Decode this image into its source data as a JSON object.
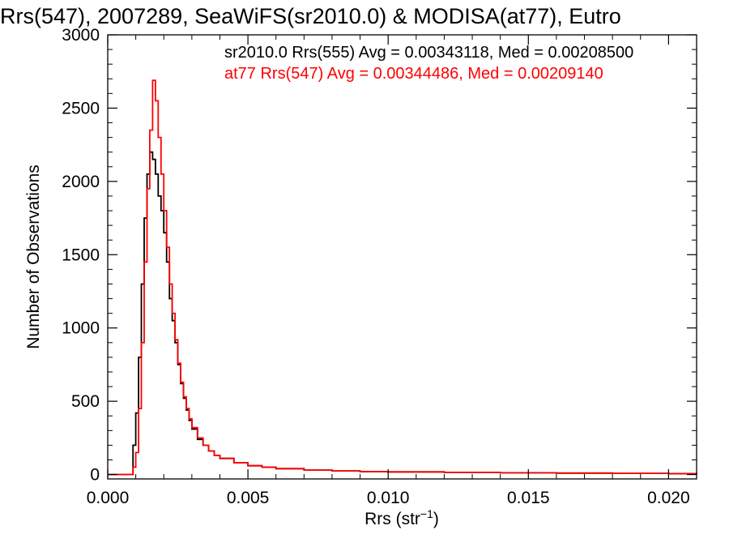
{
  "chart_data": {
    "type": "line",
    "title": "Rrs(547), 2007289, SeaWiFS(sr2010.0) & MODISA(at77), Eutro",
    "xlabel": "Rrs (str",
    "xlabel_sup": "−1",
    "xlabel_close": ")",
    "ylabel": "Number of Observations",
    "xlim": [
      0.0,
      0.021
    ],
    "ylim": [
      -30,
      3000
    ],
    "x_tick_labels": [
      "0.000",
      "0.005",
      "0.010",
      "0.015",
      "0.020"
    ],
    "x_tick_values": [
      0.0,
      0.005,
      0.01,
      0.015,
      0.02
    ],
    "y_tick_labels": [
      "0",
      "500",
      "1000",
      "1500",
      "2000",
      "2500",
      "3000"
    ],
    "y_tick_values": [
      0,
      500,
      1000,
      1500,
      2000,
      2500,
      3000
    ],
    "series": [
      {
        "name": "sr2010.0 Rrs(555) Avg = 0.00343118, Med = 0.00208500",
        "color": "#000000",
        "x": [
          0.0008,
          0.0009,
          0.001,
          0.0011,
          0.0012,
          0.0013,
          0.0014,
          0.0015,
          0.0016,
          0.0017,
          0.0018,
          0.0019,
          0.002,
          0.0021,
          0.0022,
          0.0023,
          0.0024,
          0.0025,
          0.0026,
          0.0027,
          0.0028,
          0.0029,
          0.003,
          0.0032,
          0.0034,
          0.0036,
          0.0038,
          0.004,
          0.0045,
          0.005,
          0.0055,
          0.006,
          0.007,
          0.008,
          0.009,
          0.01,
          0.012,
          0.014,
          0.016,
          0.018,
          0.02,
          0.021
        ],
        "y": [
          0,
          200,
          420,
          800,
          1300,
          1750,
          2050,
          2200,
          2150,
          2050,
          1900,
          1800,
          1650,
          1450,
          1200,
          1050,
          900,
          750,
          620,
          520,
          440,
          370,
          310,
          240,
          200,
          160,
          130,
          110,
          80,
          60,
          50,
          40,
          30,
          25,
          20,
          18,
          15,
          12,
          10,
          8,
          6,
          5
        ]
      },
      {
        "name": "at77 Rrs(547) Avg = 0.00344486, Med = 0.00209140",
        "color": "#ff0000",
        "x": [
          0.0008,
          0.0009,
          0.001,
          0.0011,
          0.0012,
          0.0013,
          0.0014,
          0.0015,
          0.0016,
          0.0017,
          0.0018,
          0.0019,
          0.002,
          0.0021,
          0.0022,
          0.0023,
          0.0024,
          0.0025,
          0.0026,
          0.0027,
          0.0028,
          0.0029,
          0.003,
          0.0032,
          0.0034,
          0.0036,
          0.0038,
          0.004,
          0.0045,
          0.005,
          0.0055,
          0.006,
          0.007,
          0.008,
          0.009,
          0.01,
          0.012,
          0.014,
          0.016,
          0.018,
          0.02,
          0.021
        ],
        "y": [
          0,
          50,
          150,
          450,
          900,
          1450,
          1950,
          2350,
          2690,
          2550,
          2300,
          2050,
          1800,
          1550,
          1300,
          1100,
          920,
          760,
          630,
          530,
          450,
          380,
          320,
          250,
          200,
          160,
          130,
          110,
          80,
          60,
          50,
          40,
          30,
          25,
          20,
          18,
          15,
          12,
          10,
          8,
          6,
          5
        ]
      }
    ],
    "grid": false,
    "legend_position": "top-right"
  }
}
